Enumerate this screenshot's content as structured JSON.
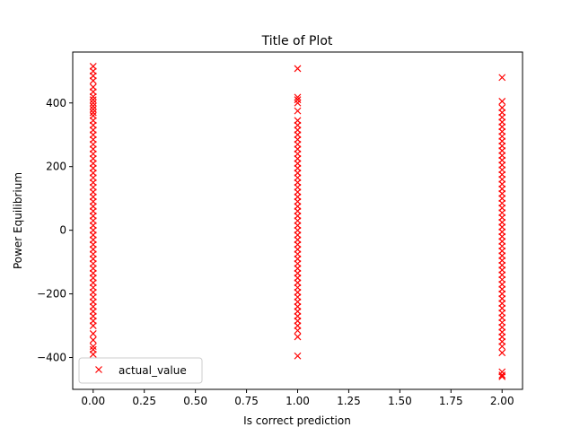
{
  "chart_data": {
    "type": "scatter",
    "title": "Title of Plot",
    "xlabel": "Is correct prediction",
    "ylabel": "Power Equilibrium",
    "xlim": [
      -0.1,
      2.1
    ],
    "ylim": [
      -500,
      560
    ],
    "x_ticks": [
      0.0,
      0.25,
      0.5,
      0.75,
      1.0,
      1.25,
      1.5,
      1.75,
      2.0
    ],
    "x_tick_labels": [
      "0.00",
      "0.25",
      "0.50",
      "0.75",
      "1.00",
      "1.25",
      "1.50",
      "1.75",
      "2.00"
    ],
    "y_ticks": [
      -400,
      -200,
      0,
      200,
      400
    ],
    "y_tick_labels": [
      "−400",
      "−200",
      "0",
      "200",
      "400"
    ],
    "grid": false,
    "legend": {
      "placement": "lower-left",
      "entries": [
        "actual_value"
      ]
    },
    "marker": "x",
    "series": [
      {
        "name": "actual_value",
        "color": "#ff0000",
        "points": [
          {
            "x": 0,
            "y": 515
          },
          {
            "x": 0,
            "y": 500
          },
          {
            "x": 0,
            "y": 485
          },
          {
            "x": 0,
            "y": 470
          },
          {
            "x": 0,
            "y": 450
          },
          {
            "x": 0,
            "y": 435
          },
          {
            "x": 0,
            "y": 420
          },
          {
            "x": 0,
            "y": 410
          },
          {
            "x": 0,
            "y": 400
          },
          {
            "x": 0,
            "y": 390
          },
          {
            "x": 0,
            "y": 380
          },
          {
            "x": 0,
            "y": 370
          },
          {
            "x": 0,
            "y": 360
          },
          {
            "x": 0,
            "y": 345
          },
          {
            "x": 0,
            "y": 330
          },
          {
            "x": 0,
            "y": 315
          },
          {
            "x": 0,
            "y": 300
          },
          {
            "x": 0,
            "y": 285
          },
          {
            "x": 0,
            "y": 270
          },
          {
            "x": 0,
            "y": 255
          },
          {
            "x": 0,
            "y": 240
          },
          {
            "x": 0,
            "y": 225
          },
          {
            "x": 0,
            "y": 210
          },
          {
            "x": 0,
            "y": 195
          },
          {
            "x": 0,
            "y": 180
          },
          {
            "x": 0,
            "y": 165
          },
          {
            "x": 0,
            "y": 150
          },
          {
            "x": 0,
            "y": 135
          },
          {
            "x": 0,
            "y": 120
          },
          {
            "x": 0,
            "y": 105
          },
          {
            "x": 0,
            "y": 90
          },
          {
            "x": 0,
            "y": 75
          },
          {
            "x": 0,
            "y": 60
          },
          {
            "x": 0,
            "y": 45
          },
          {
            "x": 0,
            "y": 30
          },
          {
            "x": 0,
            "y": 15
          },
          {
            "x": 0,
            "y": 0
          },
          {
            "x": 0,
            "y": -15
          },
          {
            "x": 0,
            "y": -30
          },
          {
            "x": 0,
            "y": -45
          },
          {
            "x": 0,
            "y": -60
          },
          {
            "x": 0,
            "y": -75
          },
          {
            "x": 0,
            "y": -90
          },
          {
            "x": 0,
            "y": -105
          },
          {
            "x": 0,
            "y": -120
          },
          {
            "x": 0,
            "y": -135
          },
          {
            "x": 0,
            "y": -150
          },
          {
            "x": 0,
            "y": -165
          },
          {
            "x": 0,
            "y": -180
          },
          {
            "x": 0,
            "y": -195
          },
          {
            "x": 0,
            "y": -210
          },
          {
            "x": 0,
            "y": -225
          },
          {
            "x": 0,
            "y": -240
          },
          {
            "x": 0,
            "y": -255
          },
          {
            "x": 0,
            "y": -270
          },
          {
            "x": 0,
            "y": -285
          },
          {
            "x": 0,
            "y": -300
          },
          {
            "x": 0,
            "y": -325
          },
          {
            "x": 0,
            "y": -345
          },
          {
            "x": 0,
            "y": -365
          },
          {
            "x": 0,
            "y": -375
          },
          {
            "x": 0,
            "y": -390
          },
          {
            "x": 1,
            "y": 508
          },
          {
            "x": 1,
            "y": 418
          },
          {
            "x": 1,
            "y": 410
          },
          {
            "x": 1,
            "y": 400
          },
          {
            "x": 1,
            "y": 375
          },
          {
            "x": 1,
            "y": 345
          },
          {
            "x": 1,
            "y": 330
          },
          {
            "x": 1,
            "y": 315
          },
          {
            "x": 1,
            "y": 300
          },
          {
            "x": 1,
            "y": 285
          },
          {
            "x": 1,
            "y": 270
          },
          {
            "x": 1,
            "y": 255
          },
          {
            "x": 1,
            "y": 240
          },
          {
            "x": 1,
            "y": 225
          },
          {
            "x": 1,
            "y": 210
          },
          {
            "x": 1,
            "y": 195
          },
          {
            "x": 1,
            "y": 180
          },
          {
            "x": 1,
            "y": 165
          },
          {
            "x": 1,
            "y": 150
          },
          {
            "x": 1,
            "y": 135
          },
          {
            "x": 1,
            "y": 120
          },
          {
            "x": 1,
            "y": 105
          },
          {
            "x": 1,
            "y": 90
          },
          {
            "x": 1,
            "y": 75
          },
          {
            "x": 1,
            "y": 60
          },
          {
            "x": 1,
            "y": 45
          },
          {
            "x": 1,
            "y": 30
          },
          {
            "x": 1,
            "y": 15
          },
          {
            "x": 1,
            "y": 0
          },
          {
            "x": 1,
            "y": -15
          },
          {
            "x": 1,
            "y": -30
          },
          {
            "x": 1,
            "y": -45
          },
          {
            "x": 1,
            "y": -60
          },
          {
            "x": 1,
            "y": -75
          },
          {
            "x": 1,
            "y": -90
          },
          {
            "x": 1,
            "y": -105
          },
          {
            "x": 1,
            "y": -120
          },
          {
            "x": 1,
            "y": -135
          },
          {
            "x": 1,
            "y": -150
          },
          {
            "x": 1,
            "y": -165
          },
          {
            "x": 1,
            "y": -180
          },
          {
            "x": 1,
            "y": -195
          },
          {
            "x": 1,
            "y": -210
          },
          {
            "x": 1,
            "y": -225
          },
          {
            "x": 1,
            "y": -240
          },
          {
            "x": 1,
            "y": -255
          },
          {
            "x": 1,
            "y": -270
          },
          {
            "x": 1,
            "y": -285
          },
          {
            "x": 1,
            "y": -300
          },
          {
            "x": 1,
            "y": -315
          },
          {
            "x": 1,
            "y": -335
          },
          {
            "x": 1,
            "y": -395
          },
          {
            "x": 2,
            "y": 480
          },
          {
            "x": 2,
            "y": 405
          },
          {
            "x": 2,
            "y": 385
          },
          {
            "x": 2,
            "y": 370
          },
          {
            "x": 2,
            "y": 355
          },
          {
            "x": 2,
            "y": 340
          },
          {
            "x": 2,
            "y": 325
          },
          {
            "x": 2,
            "y": 310
          },
          {
            "x": 2,
            "y": 295
          },
          {
            "x": 2,
            "y": 280
          },
          {
            "x": 2,
            "y": 265
          },
          {
            "x": 2,
            "y": 250
          },
          {
            "x": 2,
            "y": 235
          },
          {
            "x": 2,
            "y": 220
          },
          {
            "x": 2,
            "y": 205
          },
          {
            "x": 2,
            "y": 190
          },
          {
            "x": 2,
            "y": 175
          },
          {
            "x": 2,
            "y": 160
          },
          {
            "x": 2,
            "y": 145
          },
          {
            "x": 2,
            "y": 130
          },
          {
            "x": 2,
            "y": 115
          },
          {
            "x": 2,
            "y": 100
          },
          {
            "x": 2,
            "y": 85
          },
          {
            "x": 2,
            "y": 70
          },
          {
            "x": 2,
            "y": 55
          },
          {
            "x": 2,
            "y": 40
          },
          {
            "x": 2,
            "y": 25
          },
          {
            "x": 2,
            "y": 10
          },
          {
            "x": 2,
            "y": -5
          },
          {
            "x": 2,
            "y": -20
          },
          {
            "x": 2,
            "y": -35
          },
          {
            "x": 2,
            "y": -50
          },
          {
            "x": 2,
            "y": -65
          },
          {
            "x": 2,
            "y": -80
          },
          {
            "x": 2,
            "y": -95
          },
          {
            "x": 2,
            "y": -110
          },
          {
            "x": 2,
            "y": -125
          },
          {
            "x": 2,
            "y": -140
          },
          {
            "x": 2,
            "y": -155
          },
          {
            "x": 2,
            "y": -170
          },
          {
            "x": 2,
            "y": -185
          },
          {
            "x": 2,
            "y": -200
          },
          {
            "x": 2,
            "y": -215
          },
          {
            "x": 2,
            "y": -230
          },
          {
            "x": 2,
            "y": -245
          },
          {
            "x": 2,
            "y": -260
          },
          {
            "x": 2,
            "y": -275
          },
          {
            "x": 2,
            "y": -290
          },
          {
            "x": 2,
            "y": -305
          },
          {
            "x": 2,
            "y": -320
          },
          {
            "x": 2,
            "y": -335
          },
          {
            "x": 2,
            "y": -350
          },
          {
            "x": 2,
            "y": -365
          },
          {
            "x": 2,
            "y": -385
          },
          {
            "x": 2,
            "y": -445
          },
          {
            "x": 2,
            "y": -455
          },
          {
            "x": 2,
            "y": -460
          }
        ]
      }
    ]
  }
}
